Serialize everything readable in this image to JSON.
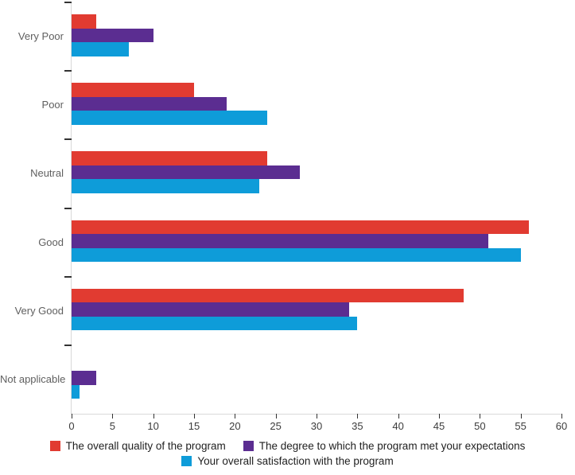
{
  "chart_data": {
    "type": "bar",
    "orientation": "horizontal",
    "title": "",
    "xlabel": "",
    "ylabel": "",
    "categories": [
      "Very Poor",
      "Poor",
      "Neutral",
      "Good",
      "Very Good",
      "Not applicable"
    ],
    "series": [
      {
        "name": "The overall quality of the program",
        "color": "#e13b31",
        "values": [
          3,
          15,
          24,
          56,
          48,
          0
        ]
      },
      {
        "name": "The degree to which the program met your expectations",
        "color": "#5b2d91",
        "values": [
          10,
          19,
          28,
          51,
          34,
          3
        ]
      },
      {
        "name": "Your overall satisfaction with the program",
        "color": "#0e9cd9",
        "values": [
          7,
          24,
          23,
          55,
          35,
          1
        ]
      }
    ],
    "xlim": [
      0,
      60
    ],
    "xticks": [
      0,
      5,
      10,
      15,
      20,
      25,
      30,
      35,
      40,
      45,
      50,
      55,
      60
    ],
    "grid": false,
    "legend_position": "bottom",
    "legend_rows": [
      [
        0,
        1
      ],
      [
        2
      ]
    ]
  },
  "style": {
    "axis_line_color": "#d9d9d9",
    "tick_color": "#333333",
    "tick_label_color": "#3c3c3c",
    "category_label_color": "#5f5f5f",
    "legend_text_color": "#1f1f1f",
    "background": "#ffffff"
  }
}
